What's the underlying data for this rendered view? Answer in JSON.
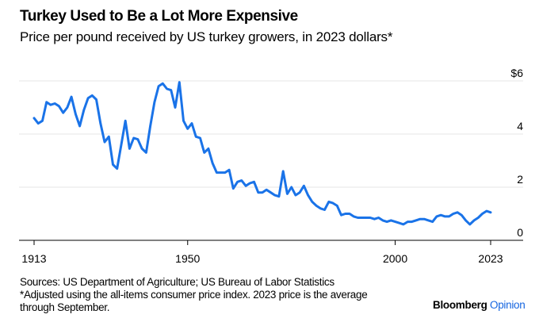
{
  "chart_data": {
    "type": "line",
    "title": "Turkey Used to Be a Lot More Expensive",
    "subtitle": "Price per pound received by US turkey growers, in 2023 dollars*",
    "xlabel": "",
    "ylabel": "",
    "xlim": [
      1913,
      2023
    ],
    "ylim": [
      0,
      6
    ],
    "x_ticks": [
      1913,
      1950,
      2000,
      2023
    ],
    "y_ticks": [
      {
        "value": 0,
        "label": "0"
      },
      {
        "value": 2,
        "label": "2"
      },
      {
        "value": 4,
        "label": "4"
      },
      {
        "value": 6,
        "label": "$6"
      }
    ],
    "grid": true,
    "y_axis_side": "right",
    "line_color": "#1a73e8",
    "series": [
      {
        "name": "Price per pound (2023 dollars)",
        "start_year": 1913,
        "values": [
          4.6,
          4.4,
          4.5,
          5.2,
          5.1,
          5.15,
          5.05,
          4.8,
          5.0,
          5.4,
          4.75,
          4.3,
          4.9,
          5.35,
          5.45,
          5.3,
          4.4,
          3.7,
          3.9,
          2.85,
          2.7,
          3.6,
          4.5,
          3.45,
          3.85,
          3.8,
          3.45,
          3.3,
          4.3,
          5.2,
          5.8,
          5.9,
          5.7,
          5.65,
          5.0,
          5.95,
          4.5,
          4.2,
          4.4,
          3.9,
          3.85,
          3.3,
          3.45,
          2.9,
          2.55,
          2.55,
          2.55,
          2.65,
          1.95,
          2.2,
          2.25,
          2.05,
          2.15,
          2.2,
          1.8,
          1.8,
          1.9,
          1.8,
          1.7,
          1.65,
          2.6,
          1.75,
          2.0,
          1.7,
          1.8,
          2.05,
          1.7,
          1.45,
          1.3,
          1.2,
          1.15,
          1.45,
          1.4,
          1.3,
          0.95,
          1.0,
          1.0,
          0.9,
          0.85,
          0.85,
          0.85,
          0.85,
          0.8,
          0.85,
          0.75,
          0.7,
          0.75,
          0.7,
          0.65,
          0.6,
          0.7,
          0.7,
          0.75,
          0.8,
          0.8,
          0.75,
          0.7,
          0.9,
          0.95,
          0.9,
          0.9,
          1.0,
          1.05,
          0.95,
          0.75,
          0.6,
          0.75,
          0.85,
          1.0,
          1.1,
          1.05
        ]
      }
    ],
    "sources": "Sources: US Department of Agriculture; US Bureau of Labor Statistics",
    "note_line1": "*Adjusted using the all-items consumer price index. 2023 price is the average",
    "note_line2": "through September."
  },
  "brand": {
    "name": "Bloomberg",
    "suffix": "Opinion"
  }
}
